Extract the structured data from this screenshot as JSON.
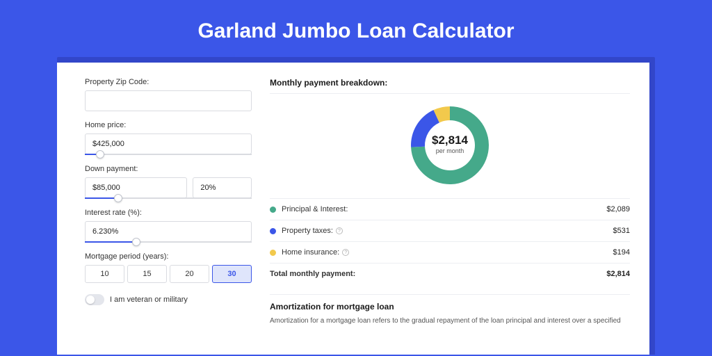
{
  "page": {
    "title": "Garland Jumbo Loan Calculator",
    "background_color": "#3b56e8",
    "card_shadow_color": "#3246c9"
  },
  "form": {
    "zip": {
      "label": "Property Zip Code:",
      "value": ""
    },
    "home_price": {
      "label": "Home price:",
      "value": "$425,000",
      "slider_pct": 9
    },
    "down_payment": {
      "label": "Down payment:",
      "amount": "$85,000",
      "pct": "20%",
      "slider_pct": 20
    },
    "interest_rate": {
      "label": "Interest rate (%):",
      "value": "6.230%",
      "slider_pct": 31
    },
    "mortgage_period": {
      "label": "Mortgage period (years):",
      "options": [
        "10",
        "15",
        "20",
        "30"
      ],
      "selected": "30"
    },
    "veteran": {
      "label": "I am veteran or military",
      "checked": false
    }
  },
  "breakdown": {
    "heading": "Monthly payment breakdown:",
    "donut": {
      "center_amount": "$2,814",
      "center_sub": "per month",
      "slices": [
        {
          "label": "Principal & Interest",
          "value": 2089,
          "color": "#45a98a",
          "display": "$2,089"
        },
        {
          "label": "Property taxes",
          "value": 531,
          "color": "#3b56e8",
          "display": "$531",
          "info": true
        },
        {
          "label": "Home insurance",
          "value": 194,
          "color": "#f2c94c",
          "display": "$194",
          "info": true
        }
      ],
      "total": {
        "label": "Total monthly payment:",
        "display": "$2,814"
      }
    }
  },
  "amortization": {
    "heading": "Amortization for mortgage loan",
    "text": "Amortization for a mortgage loan refers to the gradual repayment of the loan principal and interest over a specified"
  },
  "chart_style": {
    "type": "donut",
    "outer_radius": 56,
    "inner_radius": 36,
    "background_color": "#ffffff",
    "slice_colors": [
      "#45a98a",
      "#3b56e8",
      "#f2c94c"
    ],
    "start_angle_deg": -90
  }
}
